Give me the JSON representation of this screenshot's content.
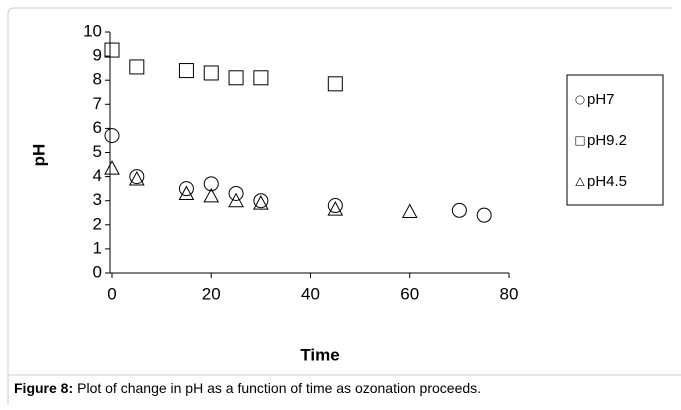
{
  "chart_data": {
    "type": "scatter",
    "xlabel": "Time",
    "ylabel": "pH",
    "xlim": [
      0,
      80
    ],
    "xticks": [
      0,
      20,
      40,
      60,
      80
    ],
    "ylim": [
      0,
      10
    ],
    "yticks": [
      0,
      1,
      2,
      3,
      4,
      5,
      6,
      7,
      8,
      9,
      10
    ],
    "legend": "right",
    "series": [
      {
        "name": "pH7",
        "marker": "circle",
        "color": "#000000",
        "x": [
          0,
          5,
          15,
          20,
          25,
          30,
          45,
          70,
          75
        ],
        "values": [
          5.7,
          4.0,
          3.5,
          3.7,
          3.3,
          3.0,
          2.8,
          2.6,
          2.4
        ]
      },
      {
        "name": "pH9.2",
        "marker": "square",
        "color": "#000000",
        "x": [
          0,
          5,
          15,
          20,
          25,
          30,
          45
        ],
        "values": [
          9.25,
          8.55,
          8.4,
          8.3,
          8.1,
          8.1,
          7.85
        ]
      },
      {
        "name": "pH4.5",
        "marker": "triangle",
        "color": "#000000",
        "x": [
          0,
          5,
          15,
          20,
          25,
          30,
          45,
          60
        ],
        "values": [
          4.35,
          3.9,
          3.3,
          3.2,
          3.0,
          2.9,
          2.65,
          2.55
        ]
      }
    ]
  },
  "caption": {
    "label": "Figure 8:",
    "text": "Plot of change in pH as a function of time as ozonation proceeds."
  }
}
